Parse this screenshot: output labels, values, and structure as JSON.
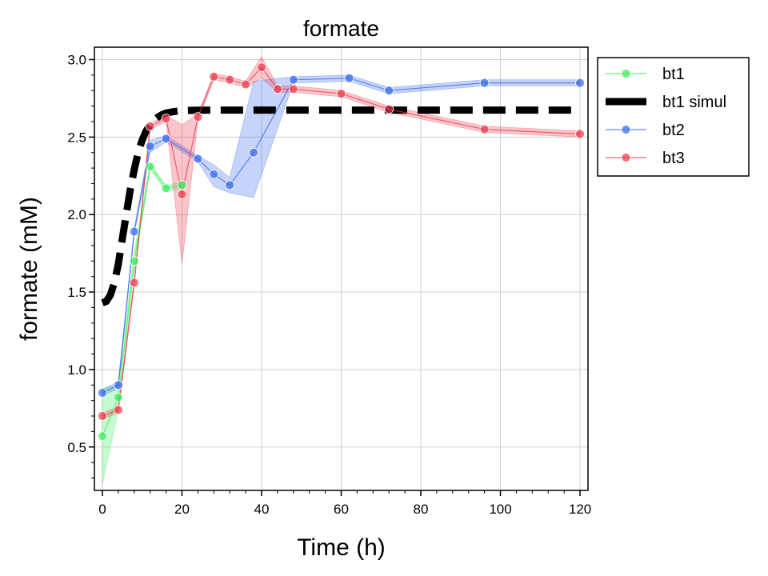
{
  "chart_data": {
    "type": "line",
    "title": "formate",
    "xlabel": "Time (h)",
    "ylabel": "formate (mM)",
    "xlim": [
      -2,
      122
    ],
    "ylim": [
      0.22,
      3.08
    ],
    "xticks": [
      0,
      20,
      40,
      60,
      80,
      100,
      120
    ],
    "xtick_labels": [
      "0",
      "20",
      "40",
      "60",
      "80",
      "100",
      "120"
    ],
    "yticks": [
      0.5,
      1.0,
      1.5,
      2.0,
      2.5,
      3.0
    ],
    "ytick_labels": [
      "0.5",
      "1.0",
      "1.5",
      "2.0",
      "2.5",
      "3.0"
    ],
    "grid": true,
    "legend_position": "upper-right-outside",
    "series": [
      {
        "name": "bt1",
        "style": "marker-line",
        "color": "#33ee55",
        "x": [
          0,
          4,
          8,
          12,
          16,
          20
        ],
        "y": [
          0.57,
          0.82,
          1.7,
          2.31,
          2.17,
          2.19
        ],
        "lower": [
          0.26,
          0.74,
          1.64,
          2.29,
          2.15,
          2.17
        ],
        "upper": [
          0.88,
          0.9,
          1.76,
          2.33,
          2.19,
          2.21
        ]
      },
      {
        "name": "bt1 simul",
        "style": "dashed",
        "color": "#000000",
        "x": [
          0,
          1,
          2,
          3,
          4,
          5,
          6,
          7,
          8,
          9,
          10,
          11,
          12,
          13,
          14,
          15,
          16,
          18,
          20,
          22,
          24,
          28,
          32,
          40,
          60,
          80,
          100,
          120
        ],
        "y": [
          1.43,
          1.44,
          1.48,
          1.56,
          1.68,
          1.84,
          2.0,
          2.16,
          2.29,
          2.4,
          2.48,
          2.54,
          2.58,
          2.61,
          2.63,
          2.645,
          2.655,
          2.665,
          2.67,
          2.672,
          2.673,
          2.674,
          2.674,
          2.674,
          2.674,
          2.674,
          2.674,
          2.674
        ]
      },
      {
        "name": "bt2",
        "style": "marker-line",
        "color": "#3366ee",
        "x": [
          0,
          4,
          8,
          12,
          16,
          24,
          28,
          32,
          38,
          48,
          62,
          72,
          96,
          120
        ],
        "y": [
          0.85,
          0.9,
          1.89,
          2.44,
          2.49,
          2.36,
          2.26,
          2.19,
          2.4,
          2.87,
          2.88,
          2.8,
          2.85,
          2.85
        ],
        "lower": [
          0.83,
          0.88,
          1.87,
          2.4,
          2.47,
          2.34,
          2.18,
          2.14,
          2.11,
          2.85,
          2.86,
          2.78,
          2.83,
          2.83
        ],
        "upper": [
          0.87,
          0.92,
          1.91,
          2.48,
          2.51,
          2.38,
          2.32,
          2.24,
          2.86,
          2.89,
          2.9,
          2.82,
          2.87,
          2.87
        ]
      },
      {
        "name": "bt3",
        "style": "marker-line",
        "color": "#ee3344",
        "x": [
          0,
          4,
          8,
          12,
          16,
          20,
          24,
          28,
          32,
          36,
          40,
          44,
          48,
          60,
          72,
          96,
          120
        ],
        "y": [
          0.7,
          0.74,
          1.56,
          2.57,
          2.62,
          2.13,
          2.63,
          2.89,
          2.87,
          2.84,
          2.95,
          2.81,
          2.81,
          2.78,
          2.68,
          2.55,
          2.52
        ],
        "lower": [
          0.68,
          0.72,
          1.54,
          2.55,
          2.6,
          1.68,
          2.61,
          2.87,
          2.85,
          2.82,
          2.88,
          2.79,
          2.79,
          2.76,
          2.66,
          2.53,
          2.5
        ],
        "upper": [
          0.72,
          0.76,
          1.58,
          2.59,
          2.64,
          2.58,
          2.65,
          2.91,
          2.89,
          2.86,
          3.02,
          2.83,
          2.83,
          2.8,
          2.7,
          2.57,
          2.54
        ]
      }
    ]
  }
}
